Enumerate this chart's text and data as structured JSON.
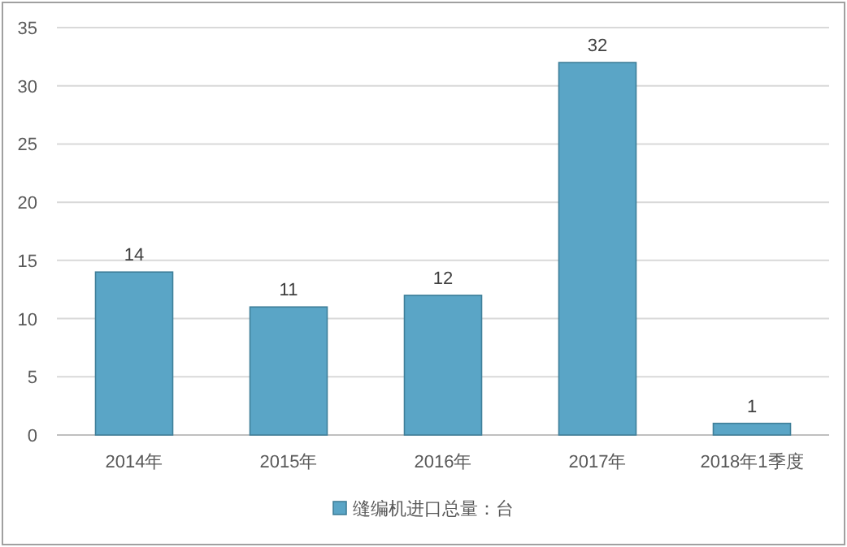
{
  "chart_data": {
    "type": "bar",
    "categories": [
      "2014年",
      "2015年",
      "2016年",
      "2017年",
      "2018年1季度"
    ],
    "series": [
      {
        "name": "缝编机进口总量：台",
        "color": "#5aa5c6",
        "values": [
          14,
          11,
          12,
          32,
          1
        ]
      }
    ],
    "ylim": [
      0,
      35
    ],
    "yticks": [
      0,
      5,
      10,
      15,
      20,
      25,
      30,
      35
    ],
    "grid": "y",
    "data_labels": true,
    "legend": "bottom"
  }
}
